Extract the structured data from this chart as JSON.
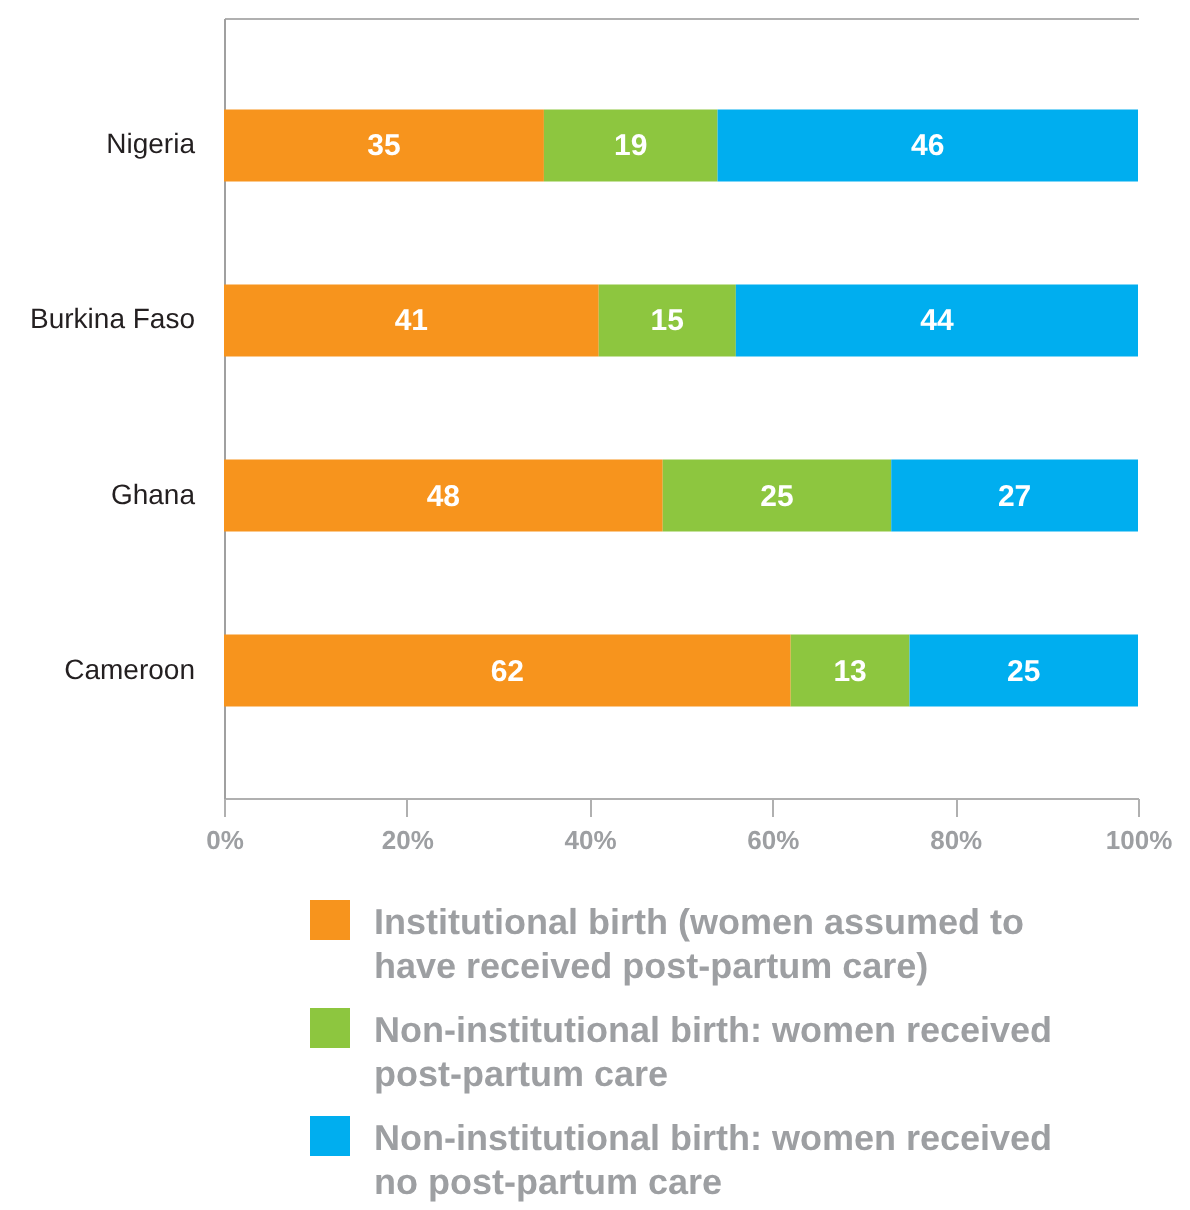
{
  "chart_data": {
    "type": "bar",
    "orientation": "horizontal",
    "stacked": true,
    "data_labels": true,
    "legend": "bottom",
    "categories": [
      "Nigeria",
      "Burkina Faso",
      "Ghana",
      "Cameroon"
    ],
    "series": [
      {
        "name": "Institutional birth (women assumed to have received post-partum care)",
        "color": "#f7941d",
        "values": [
          35,
          41,
          48,
          62
        ]
      },
      {
        "name": "Non-institutional birth: women received post-partum care",
        "color": "#8dc63f",
        "values": [
          19,
          15,
          25,
          13
        ]
      },
      {
        "name": "Non-institutional birth: women received no post-partum care",
        "color": "#00aeef",
        "values": [
          46,
          44,
          27,
          25
        ]
      }
    ],
    "xlim": [
      0,
      100
    ],
    "xticks": [
      {
        "value": 0,
        "label": "0%"
      },
      {
        "value": 20,
        "label": "20%"
      },
      {
        "value": 40,
        "label": "40%"
      },
      {
        "value": 60,
        "label": "60%"
      },
      {
        "value": 80,
        "label": "80%"
      },
      {
        "value": 100,
        "label": "100%"
      }
    ]
  }
}
